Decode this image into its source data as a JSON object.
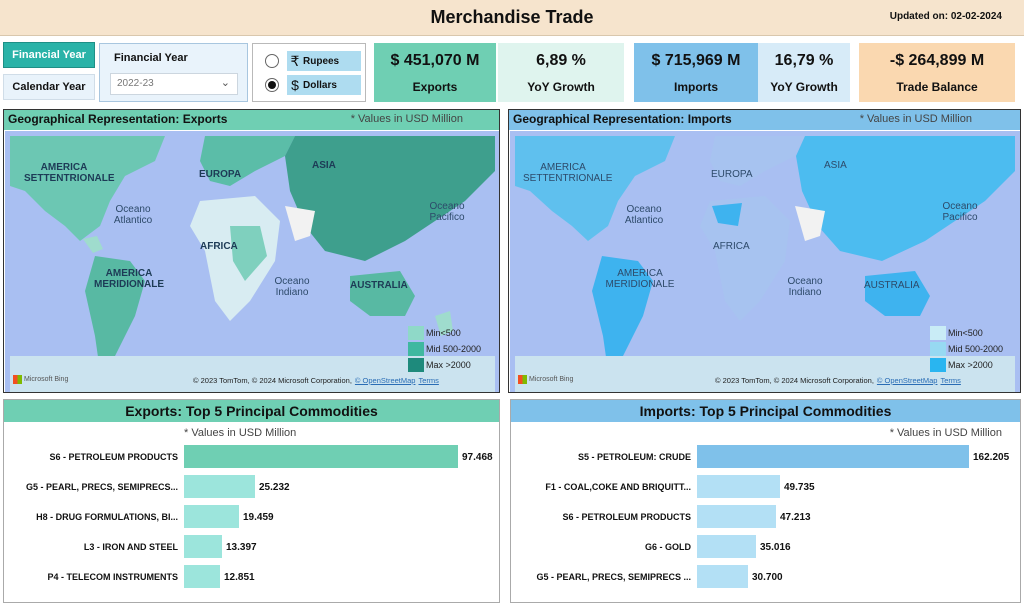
{
  "header": {
    "title": "Merchandise Trade",
    "updated": "Updated on: 02-02-2024"
  },
  "slicers": {
    "period_buttons": [
      {
        "label": "Financial Year",
        "selected": true
      },
      {
        "label": "Calendar Year",
        "selected": false
      }
    ],
    "financial_year": {
      "label": "Financial Year",
      "value": "2022-23"
    },
    "currency": {
      "options": [
        {
          "symbol": "₹",
          "label": "Rupees",
          "selected": false
        },
        {
          "symbol": "$",
          "label": "Dollars",
          "selected": true
        }
      ]
    }
  },
  "kpis": {
    "exports": {
      "value": "$ 451,070 M",
      "label": "Exports",
      "color": "#6fcfb3"
    },
    "exports_growth": {
      "value": "6,89 %",
      "label": "YoY Growth"
    },
    "imports": {
      "value": "$ 715,969 M",
      "label": "Imports",
      "color": "#7fc1ea"
    },
    "imports_growth": {
      "value": "16,79 %",
      "label": "YoY Growth"
    },
    "trade_balance": {
      "value": "-$ 264,899 M",
      "label": "Trade Balance",
      "color": "#fad8b0"
    }
  },
  "maps": {
    "exports": {
      "title": "Geographical Representation: Exports",
      "note": "* Values in USD Million",
      "labels": {
        "na": "AMERICA SETTENTRIONALE",
        "eu": "EUROPA",
        "asia": "ASIA",
        "atl": "Oceano Atlantico",
        "pac": "Oceano Pacifico",
        "africa": "AFRICA",
        "sa": "AMERICA MERIDIONALE",
        "ind": "Oceano Indiano",
        "aus": "AUSTRALIA"
      },
      "legend": [
        {
          "label": "Min<500",
          "color": "#8fd9c8"
        },
        {
          "label": "Mid 500-2000",
          "color": "#3fb8a0"
        },
        {
          "label": "Max >2000",
          "color": "#1e8a7c"
        }
      ]
    },
    "imports": {
      "title": "Geographical Representation: Imports",
      "note": "* Values in USD Million",
      "labels": {
        "na": "AMERICA SETTENTRIONALE",
        "eu": "EUROPA",
        "asia": "ASIA",
        "atl": "Oceano Atlantico",
        "pac": "Oceano Pacifico",
        "africa": "AFRICA",
        "sa": "AMERICA MERIDIONALE",
        "ind": "Oceano Indiano",
        "aus": "AUSTRALIA"
      },
      "legend": [
        {
          "label": "Min<500",
          "color": "#c9ecf6"
        },
        {
          "label": "Mid 500-2000",
          "color": "#97d9f2"
        },
        {
          "label": "Max >2000",
          "color": "#29b5f0"
        }
      ]
    },
    "bing": "Microsoft Bing",
    "attribution": "© 2023 TomTom, © 2024 Microsoft Corporation,",
    "osm": "© OpenStreetMap",
    "terms": "Terms"
  },
  "chart_data": [
    {
      "type": "bar",
      "title": "Exports: Top 5 Principal Commodities",
      "note": "* Values in USD Million",
      "categories": [
        "S6 - PETROLEUM PRODUCTS",
        "G5 - PEARL, PRECS, SEMIPRECS...",
        "H8 - DRUG FORMULATIONS, BI...",
        "L3 - IRON AND STEEL",
        "P4 - TELECOM INSTRUMENTS"
      ],
      "values": [
        97.468,
        25.232,
        19.459,
        13.397,
        12.851
      ],
      "colors": [
        "#6fcfb3",
        "#9ce5dc",
        "#9ce5dc",
        "#9ce5dc",
        "#9ce5dc"
      ]
    },
    {
      "type": "bar",
      "title": "Imports: Top 5 Principal Commodities",
      "note": "* Values in USD Million",
      "categories": [
        "S5 - PETROLEUM: CRUDE",
        "F1 - COAL,COKE AND BRIQUITT...",
        "S6 - PETROLEUM PRODUCTS",
        "G6 - GOLD",
        "G5 - PEARL, PRECS, SEMIPRECS ..."
      ],
      "values": [
        162.205,
        49.735,
        47.213,
        35.016,
        30.7
      ],
      "colors": [
        "#7fc1ea",
        "#b3e0f5",
        "#b3e0f5",
        "#b3e0f5",
        "#b3e0f5"
      ]
    }
  ]
}
